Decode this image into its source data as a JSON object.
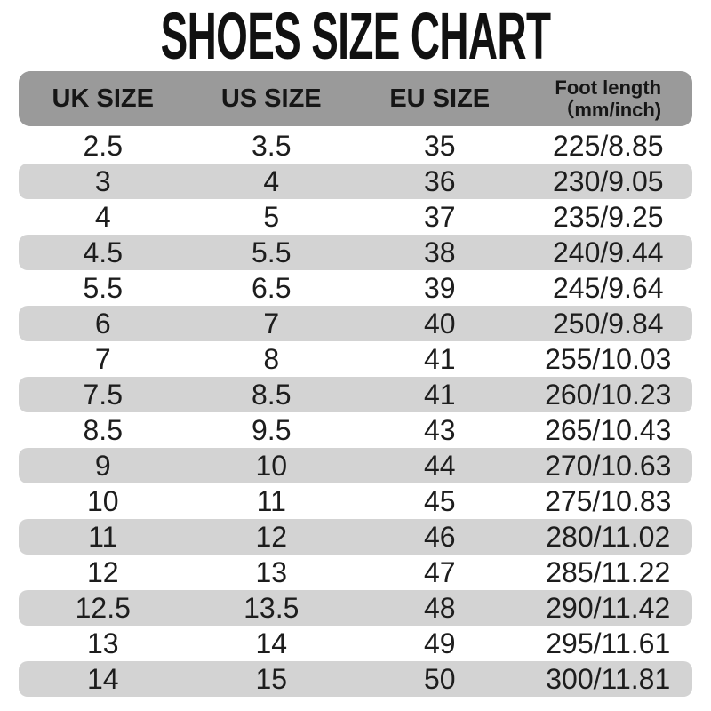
{
  "chart_data": {
    "type": "table",
    "title": "SHOES SIZE CHART",
    "columns": [
      "UK SIZE",
      "US SIZE",
      "EU SIZE",
      "Foot length （mm/inch)"
    ],
    "header": {
      "uk": "UK SIZE",
      "us": "US SIZE",
      "eu": "EU SIZE",
      "foot_line1": "Foot length",
      "foot_line2": "（mm/inch)"
    },
    "rows": [
      [
        "2.5",
        "3.5",
        "35",
        "225/8.85"
      ],
      [
        "3",
        "4",
        "36",
        "230/9.05"
      ],
      [
        "4",
        "5",
        "37",
        "235/9.25"
      ],
      [
        "4.5",
        "5.5",
        "38",
        "240/9.44"
      ],
      [
        "5.5",
        "6.5",
        "39",
        "245/9.64"
      ],
      [
        "6",
        "7",
        "40",
        "250/9.84"
      ],
      [
        "7",
        "8",
        "41",
        "255/10.03"
      ],
      [
        "7.5",
        "8.5",
        "41",
        "260/10.23"
      ],
      [
        "8.5",
        "9.5",
        "43",
        "265/10.43"
      ],
      [
        "9",
        "10",
        "44",
        "270/10.63"
      ],
      [
        "10",
        "11",
        "45",
        "275/10.83"
      ],
      [
        "11",
        "12",
        "46",
        "280/11.02"
      ],
      [
        "12",
        "13",
        "47",
        "285/11.22"
      ],
      [
        "12.5",
        "13.5",
        "48",
        "290/11.42"
      ],
      [
        "13",
        "14",
        "49",
        "295/11.61"
      ],
      [
        "14",
        "15",
        "50",
        "300/11.81"
      ]
    ],
    "layout": {
      "striped": true,
      "stripe_color": "#d3d3d3",
      "header_color": "#9a9a9a",
      "text_color": "#1d1d1d",
      "background": "#ffffff"
    }
  }
}
